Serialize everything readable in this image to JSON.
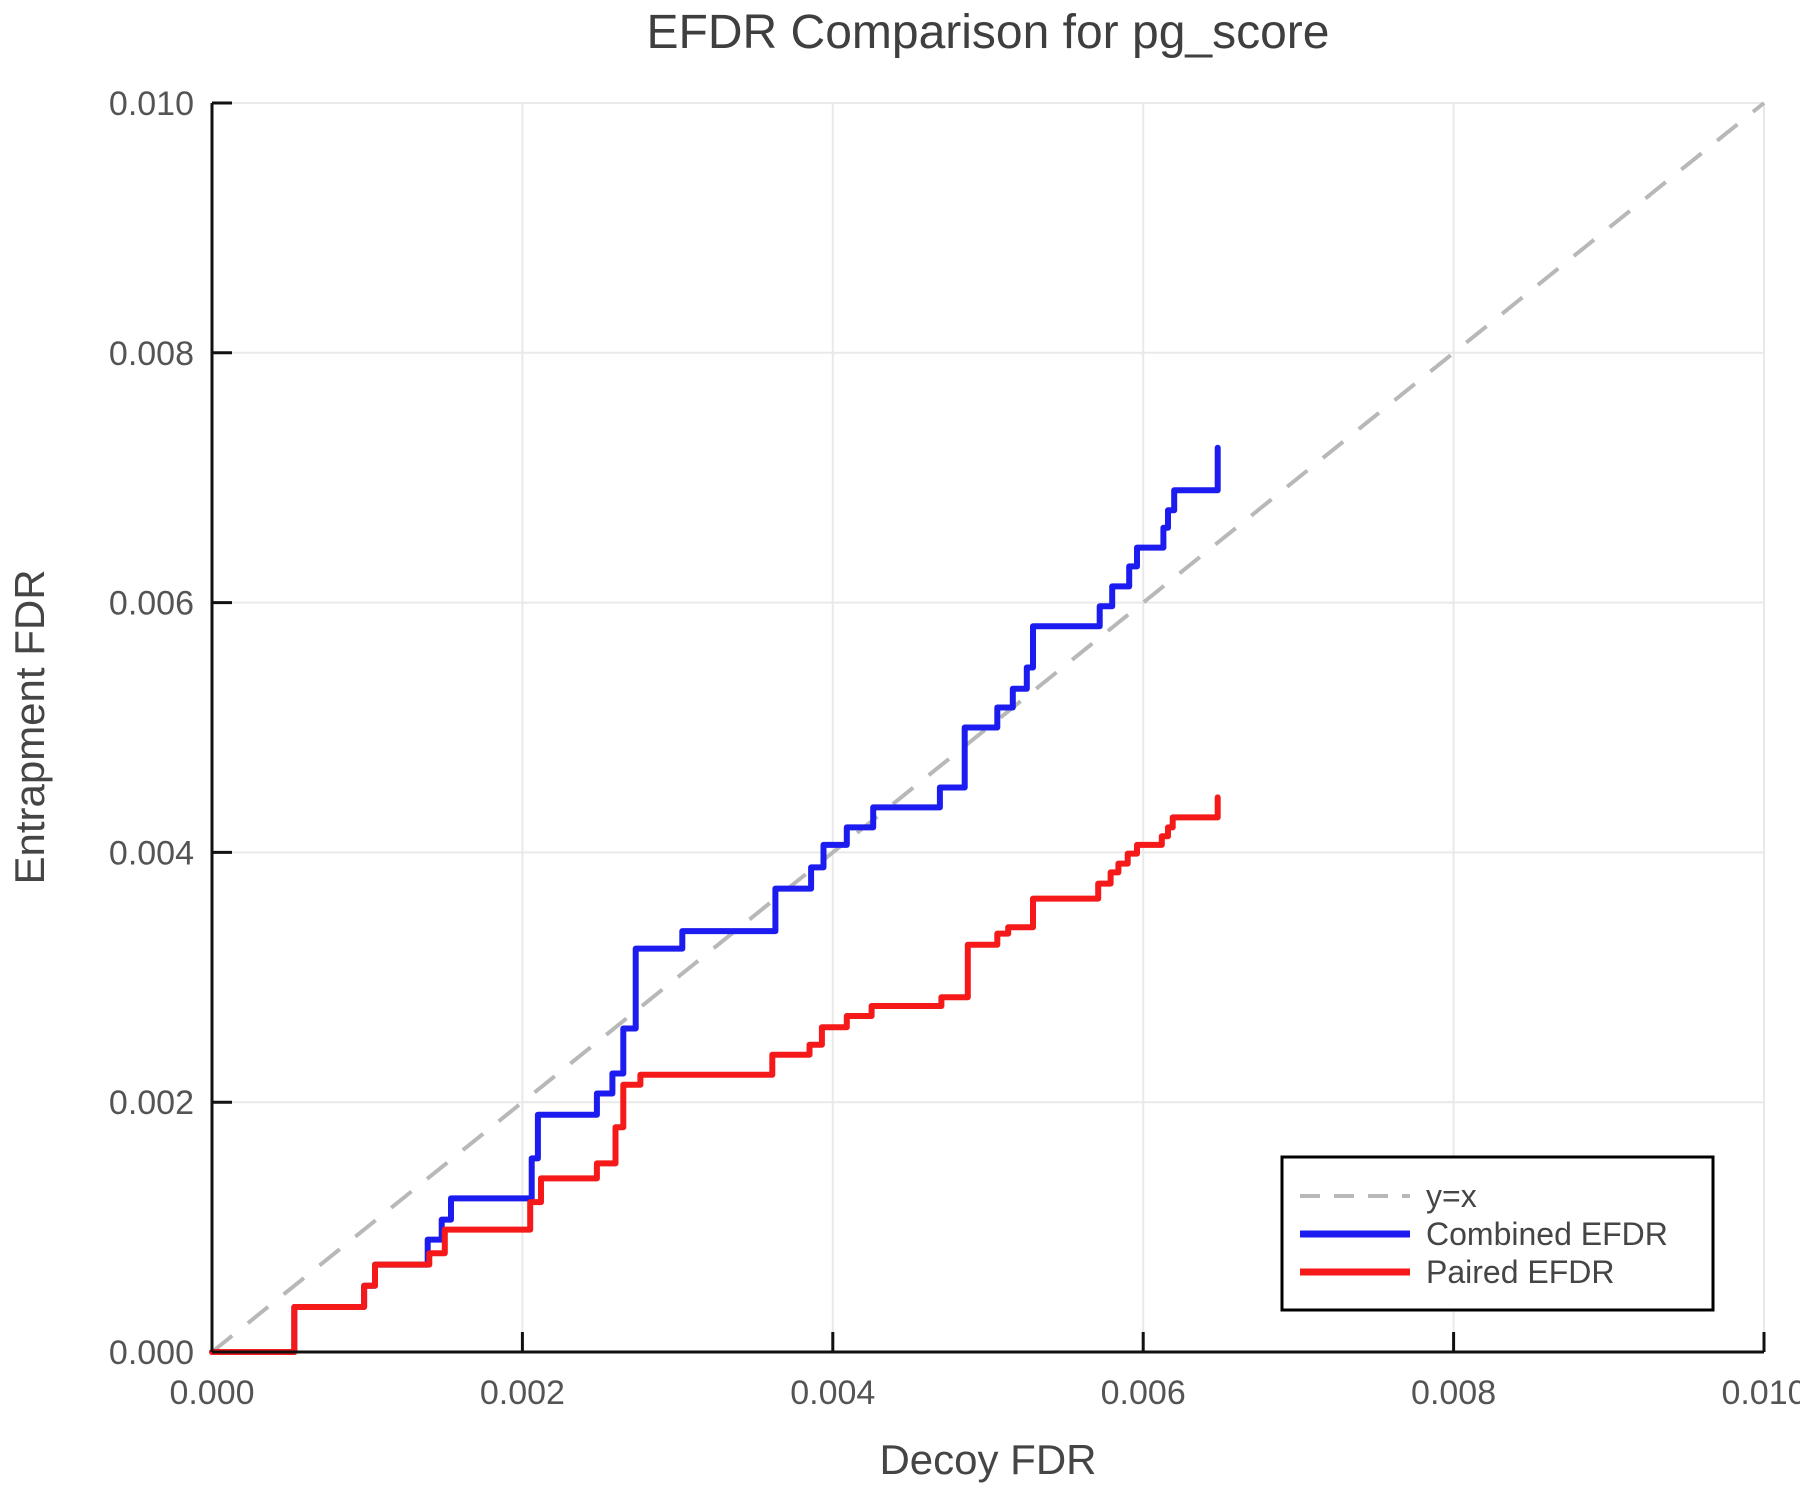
{
  "page": {
    "background": "#ffffff"
  },
  "chart_data": {
    "type": "line",
    "title": "EFDR Comparison for pg_score",
    "xlabel": "Decoy FDR",
    "ylabel": "Entrapment FDR",
    "xlim": [
      0.0,
      0.01
    ],
    "ylim": [
      0.0,
      0.01
    ],
    "grid": true,
    "grid_color": "#e9e9e9",
    "spine_color": "#111111",
    "legend_position": "lower right",
    "xticks": [
      {
        "value": 0.0,
        "label": "0.000"
      },
      {
        "value": 0.002,
        "label": "0.002"
      },
      {
        "value": 0.004,
        "label": "0.004"
      },
      {
        "value": 0.006,
        "label": "0.006"
      },
      {
        "value": 0.008,
        "label": "0.008"
      },
      {
        "value": 0.01,
        "label": "0.010"
      }
    ],
    "yticks": [
      {
        "value": 0.0,
        "label": "0.000"
      },
      {
        "value": 0.002,
        "label": "0.002"
      },
      {
        "value": 0.004,
        "label": "0.004"
      },
      {
        "value": 0.006,
        "label": "0.006"
      },
      {
        "value": 0.008,
        "label": "0.008"
      },
      {
        "value": 0.01,
        "label": "0.010"
      }
    ],
    "series": [
      {
        "name": "y=x",
        "kind": "reference",
        "style": "dashed",
        "color": "#b8b8b8",
        "points": [
          [
            0.0,
            0.0
          ],
          [
            0.01,
            0.01
          ]
        ]
      },
      {
        "name": "Combined EFDR",
        "kind": "step",
        "style": "solid",
        "color": "#1c1cf0",
        "start": [
          0.0,
          0.0
        ],
        "steps": [
          [
            0.00053,
            0.00036
          ],
          [
            0.00098,
            0.00053
          ],
          [
            0.00105,
            0.0007
          ],
          [
            0.00139,
            0.0009
          ],
          [
            0.00148,
            0.00106
          ],
          [
            0.00154,
            0.00123
          ],
          [
            0.00206,
            0.00155
          ],
          [
            0.0021,
            0.0019
          ],
          [
            0.00248,
            0.00207
          ],
          [
            0.00258,
            0.00223
          ],
          [
            0.00265,
            0.00259
          ],
          [
            0.00273,
            0.00323
          ],
          [
            0.00303,
            0.00337
          ],
          [
            0.00363,
            0.00371
          ],
          [
            0.00386,
            0.00388
          ],
          [
            0.00394,
            0.00406
          ],
          [
            0.00409,
            0.0042
          ],
          [
            0.00426,
            0.00436
          ],
          [
            0.00469,
            0.00452
          ],
          [
            0.00485,
            0.005
          ],
          [
            0.00506,
            0.00516
          ],
          [
            0.00516,
            0.00531
          ],
          [
            0.00525,
            0.00548
          ],
          [
            0.00529,
            0.00581
          ],
          [
            0.00572,
            0.00597
          ],
          [
            0.0058,
            0.00613
          ],
          [
            0.00591,
            0.00629
          ],
          [
            0.00596,
            0.00644
          ],
          [
            0.00613,
            0.0066
          ],
          [
            0.00616,
            0.00674
          ],
          [
            0.0062,
            0.0069
          ],
          [
            0.00648,
            0.00724
          ]
        ]
      },
      {
        "name": "Paired EFDR",
        "kind": "step",
        "style": "solid",
        "color": "#f51919",
        "start": [
          0.0,
          0.0
        ],
        "steps": [
          [
            0.00053,
            0.00036
          ],
          [
            0.00098,
            0.00053
          ],
          [
            0.00105,
            0.0007
          ],
          [
            0.0014,
            0.00079
          ],
          [
            0.0015,
            0.00098
          ],
          [
            0.00205,
            0.0012
          ],
          [
            0.00212,
            0.00139
          ],
          [
            0.00248,
            0.00151
          ],
          [
            0.0026,
            0.0018
          ],
          [
            0.00265,
            0.00214
          ],
          [
            0.00276,
            0.00222
          ],
          [
            0.00361,
            0.00238
          ],
          [
            0.00385,
            0.00246
          ],
          [
            0.00393,
            0.0026
          ],
          [
            0.00409,
            0.00269
          ],
          [
            0.00425,
            0.00277
          ],
          [
            0.0047,
            0.00284
          ],
          [
            0.00487,
            0.00326
          ],
          [
            0.00506,
            0.00335
          ],
          [
            0.00513,
            0.0034
          ],
          [
            0.00529,
            0.00363
          ],
          [
            0.00571,
            0.00375
          ],
          [
            0.00579,
            0.00384
          ],
          [
            0.00584,
            0.00391
          ],
          [
            0.0059,
            0.00399
          ],
          [
            0.00596,
            0.00406
          ],
          [
            0.00612,
            0.00413
          ],
          [
            0.00616,
            0.0042
          ],
          [
            0.00619,
            0.00428
          ],
          [
            0.00648,
            0.00444
          ]
        ]
      }
    ],
    "legend": {
      "entries": [
        "y=x",
        "Combined EFDR",
        "Paired EFDR"
      ]
    }
  }
}
